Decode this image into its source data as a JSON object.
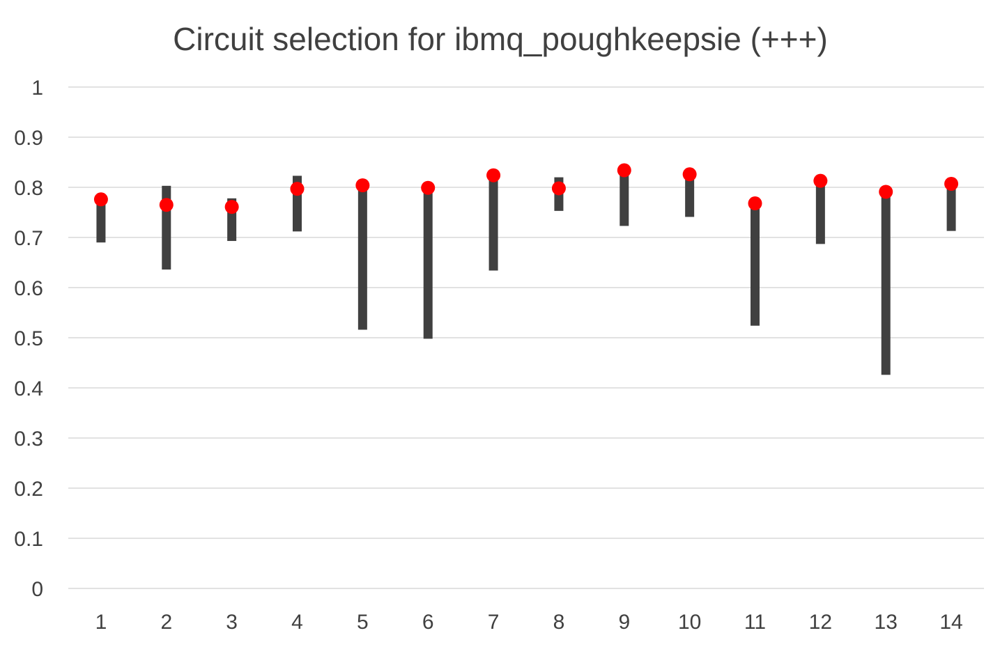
{
  "chart_data": {
    "type": "bar",
    "title": "Circuit selection for ibmq_poughkeepsie   (+++)",
    "xlabel": "",
    "ylabel": "",
    "categories": [
      "1",
      "2",
      "3",
      "4",
      "5",
      "6",
      "7",
      "8",
      "9",
      "10",
      "11",
      "12",
      "13",
      "14"
    ],
    "y_ticks": [
      "0",
      "0.1",
      "0.2",
      "0.3",
      "0.4",
      "0.5",
      "0.6",
      "0.7",
      "0.8",
      "0.9",
      "1"
    ],
    "ylim": [
      0,
      1
    ],
    "grid": true,
    "legend": "none",
    "series": [
      {
        "kind": "range-bar",
        "color": "#404040",
        "low": [
          0.69,
          0.636,
          0.693,
          0.712,
          0.516,
          0.498,
          0.634,
          0.753,
          0.723,
          0.741,
          0.524,
          0.687,
          0.426,
          0.713
        ],
        "high": [
          0.777,
          0.803,
          0.778,
          0.823,
          0.805,
          0.8,
          0.825,
          0.82,
          0.835,
          0.827,
          0.77,
          0.815,
          0.792,
          0.808
        ]
      },
      {
        "kind": "marker",
        "color": "#ff0000",
        "values": [
          0.776,
          0.765,
          0.761,
          0.797,
          0.804,
          0.799,
          0.824,
          0.798,
          0.834,
          0.826,
          0.768,
          0.813,
          0.791,
          0.807
        ]
      }
    ]
  }
}
